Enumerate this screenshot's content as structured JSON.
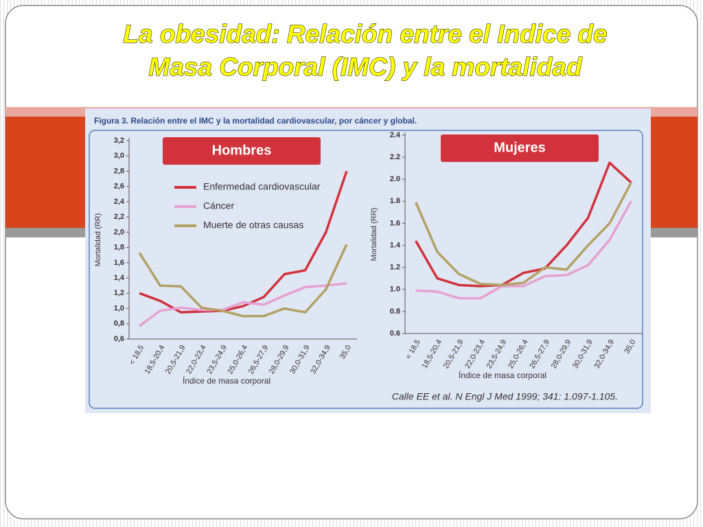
{
  "slide_title": [
    "La obesidad: Relación entre el Indice de",
    "Masa Corporal (IMC) y la mortalidad"
  ],
  "figure_caption": "Figura 3. Relación entre el IMC y la mortalidad cardiovascular, por cáncer y global.",
  "citation": "Calle EE et al. N Engl J Med 1999; 341: 1.097-1.105.",
  "chart_data": [
    {
      "type": "line",
      "title": "Hombres",
      "x_label": "Índice de masa corporal",
      "y_label": "Mortalidad (RR)",
      "categories": [
        "< 18,5",
        "18,5-20,4",
        "20,5-21,9",
        "22,0-23,4",
        "23,5-24,9",
        "25,0-26,4",
        "26,5-27,9",
        "28,0-29,9",
        "30,0-31,9",
        "32,0-34,9",
        "35,0"
      ],
      "series": [
        {
          "name": "Enfermedad cardiovascular",
          "color": "#d2323c",
          "values": [
            1.2,
            1.1,
            0.95,
            0.96,
            0.97,
            1.03,
            1.15,
            1.45,
            1.5,
            2.0,
            2.8
          ]
        },
        {
          "name": "Cáncer",
          "color": "#e6a0d2",
          "values": [
            0.77,
            0.97,
            1.01,
            0.98,
            0.98,
            1.08,
            1.05,
            1.17,
            1.28,
            1.3,
            1.33
          ]
        },
        {
          "name": "Muerte de otras causas",
          "color": "#b4a064",
          "values": [
            1.73,
            1.3,
            1.29,
            1.01,
            0.97,
            0.9,
            0.9,
            1.0,
            0.95,
            1.25,
            1.84
          ]
        }
      ],
      "ylim": [
        0.6,
        3.2
      ],
      "yticks": [
        {
          "value": 0.6,
          "label": "0,6"
        },
        {
          "value": 0.8,
          "label": "0,8"
        },
        {
          "value": 1.0,
          "label": "1,0"
        },
        {
          "value": 1.2,
          "label": "1,2"
        },
        {
          "value": 1.4,
          "label": "1,4"
        },
        {
          "value": 1.6,
          "label": "1,6"
        },
        {
          "value": 1.8,
          "label": "1,8"
        },
        {
          "value": 2.0,
          "label": "2,0"
        },
        {
          "value": 2.2,
          "label": "2,2"
        },
        {
          "value": 2.4,
          "label": "2,4"
        },
        {
          "value": 2.6,
          "label": "2,6"
        },
        {
          "value": 2.8,
          "label": "2,8"
        },
        {
          "value": 3.0,
          "label": "3,0"
        },
        {
          "value": 3.2,
          "label": "3,2"
        }
      ],
      "legend": "upper left"
    },
    {
      "type": "line",
      "title": "Mujeres",
      "x_label": "Índice de masa corporal",
      "y_label": "Mortalidad (RR)",
      "categories": [
        "< 18,5",
        "18,5-20,4",
        "20,5-21,9",
        "22,0-23,4",
        "23,5-24,9",
        "25,0-26,4",
        "26,5-27,9",
        "28,0-29,9",
        "30,0-31,9",
        "32,0-34,9",
        "35,0"
      ],
      "series": [
        {
          "color": "#d2323c",
          "values": [
            1.44,
            1.1,
            1.04,
            1.03,
            1.04,
            1.15,
            1.19,
            1.4,
            1.65,
            2.15,
            1.97
          ]
        },
        {
          "color": "#e6a0d2",
          "values": [
            0.99,
            0.98,
            0.92,
            0.92,
            1.03,
            1.03,
            1.12,
            1.13,
            1.22,
            1.45,
            1.8
          ]
        },
        {
          "color": "#b4a064",
          "values": [
            1.79,
            1.34,
            1.14,
            1.05,
            1.04,
            1.06,
            1.2,
            1.18,
            1.4,
            1.6,
            1.97
          ]
        }
      ],
      "ylim": [
        0.6,
        2.4
      ],
      "yticks": [
        0.6,
        0.8,
        {
          "value": 1.0,
          "label": "1.0"
        },
        1.2,
        1.4,
        1.6,
        1.8,
        {
          "value": 2.0,
          "label": "2.0"
        },
        2.2,
        2.4
      ]
    }
  ]
}
